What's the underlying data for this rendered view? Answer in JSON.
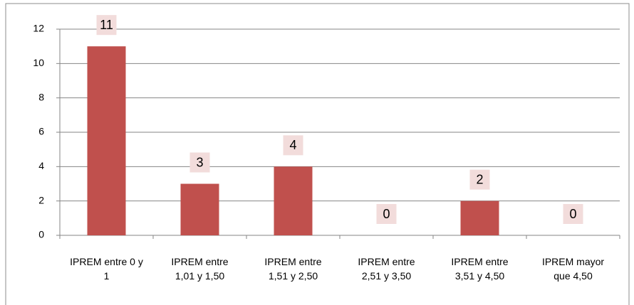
{
  "chart_data": {
    "type": "bar",
    "categories": [
      "IPREM entre 0 y 1",
      "IPREM entre 1,01 y 1,50",
      "IPREM entre 1,51 y 2,50",
      "IPREM entre 2,51 y 3,50",
      "IPREM entre 3,51 y 4,50",
      "IPREM mayor que 4,50"
    ],
    "values": [
      11,
      3,
      4,
      0,
      2,
      0
    ],
    "color": "#c0504d",
    "ylim": [
      0,
      12
    ],
    "yticks": [
      0,
      2,
      4,
      6,
      8,
      10,
      12
    ],
    "grid": true
  }
}
